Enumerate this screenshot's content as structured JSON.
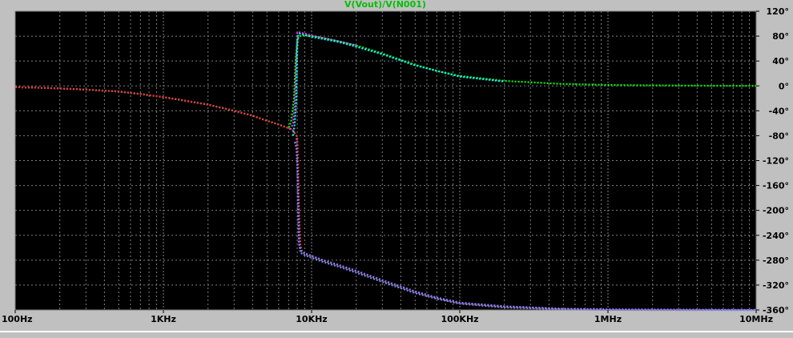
{
  "chart_data": {
    "type": "line",
    "title": "V(Vout)/V(N001)",
    "xscale": "log",
    "xlim": [
      100,
      10000000
    ],
    "ylim": [
      -360,
      120
    ],
    "grid": true,
    "xticks": [
      "100Hz",
      "1KHz",
      "10KHz",
      "100KHz",
      "1MHz",
      "10MHz"
    ],
    "xtick_values": [
      100,
      1000,
      10000,
      100000,
      1000000,
      10000000
    ],
    "yticks": [
      "120°",
      "80°",
      "40°",
      "0°",
      "-40°",
      "-80°",
      "-120°",
      "-160°",
      "-200°",
      "-240°",
      "-280°",
      "-320°",
      "-360°"
    ],
    "ytick_values": [
      120,
      80,
      40,
      0,
      -40,
      -80,
      -120,
      -160,
      -200,
      -240,
      -280,
      -320,
      -360
    ],
    "colors": {
      "background": "#000000",
      "grid": "#808080",
      "frame": "#c0c0c0",
      "axis_text": "#000000",
      "title": "#00c000"
    },
    "series": [
      {
        "color": "#00ff00",
        "x": [
          100,
          150,
          200,
          300,
          500,
          700,
          1000,
          1500,
          2000,
          3000,
          4000,
          5000,
          6000,
          7000,
          7300,
          7600,
          7800,
          8000,
          8200,
          9000,
          10000,
          12000,
          15000,
          20000,
          30000,
          50000,
          70000,
          100000,
          200000,
          500000,
          1000000,
          2000000,
          5000000,
          10000000
        ],
        "y": [
          -2,
          -3,
          -4,
          -6,
          -9,
          -13,
          -18,
          -25,
          -30,
          -40,
          -48,
          -56,
          -62,
          -68,
          -55,
          -20,
          40,
          72,
          80,
          81,
          80,
          77,
          72,
          65,
          52,
          34,
          24,
          16,
          8,
          3,
          1.5,
          0.8,
          0.3,
          0.1
        ]
      },
      {
        "color": "#4fa0ff",
        "x": [
          100,
          150,
          200,
          300,
          500,
          700,
          1000,
          1500,
          2000,
          3000,
          4000,
          5000,
          6000,
          7000,
          7500,
          7900,
          8000,
          8100,
          8200,
          8400,
          9000,
          10000,
          12000,
          15000,
          20000,
          30000,
          50000,
          70000,
          100000,
          200000,
          500000,
          1000000,
          2000000,
          5000000,
          10000000
        ],
        "y": [
          -2,
          -3,
          -4,
          -6,
          -9,
          -13,
          -18,
          -25,
          -30,
          -40,
          -48,
          -56,
          -62,
          -68,
          -72,
          -80,
          -120,
          -200,
          -250,
          -268,
          -272,
          -276,
          -283,
          -290,
          -300,
          -315,
          -333,
          -342,
          -350,
          -356,
          -359,
          -360,
          -360,
          -360,
          -360
        ]
      },
      {
        "color": "#ff3030",
        "x": [
          100,
          150,
          200,
          300,
          500,
          700,
          1000,
          1500,
          2000,
          3000,
          4000,
          5000,
          6000,
          7000,
          7500,
          8000,
          8100,
          8200,
          8400,
          8600,
          9000,
          10000,
          12000,
          15000,
          20000,
          30000,
          50000,
          70000,
          100000,
          200000,
          500000,
          1000000,
          2000000,
          5000000,
          10000000
        ],
        "y": [
          -2,
          -3,
          -4,
          -6,
          -9,
          -13,
          -18,
          -25,
          -30,
          -40,
          -48,
          -56,
          -62,
          -68,
          -72,
          -82,
          -120,
          -190,
          -255,
          -265,
          -270,
          -274,
          -281,
          -288,
          -298,
          -313,
          -331,
          -341,
          -349,
          -355,
          -358.5,
          -359.5,
          -360,
          -360,
          -360
        ]
      },
      {
        "color": "#ff30ff",
        "x": [
          7200,
          7500,
          7700,
          7900,
          8000,
          8300,
          9000,
          10000,
          12000,
          15000,
          20000
        ],
        "y": [
          -70,
          -60,
          -30,
          50,
          86,
          86,
          84,
          81,
          77,
          72,
          65
        ]
      },
      {
        "color": "#00ffff",
        "x": [
          7500,
          7700,
          7900,
          8000,
          8100,
          8300,
          9000,
          10000,
          15000,
          20000,
          30000,
          50000,
          100000,
          200000
        ],
        "y": [
          -80,
          -60,
          -20,
          60,
          82,
          84,
          82,
          79,
          71,
          63,
          51,
          33,
          15,
          7
        ]
      },
      {
        "color": "#8080ff",
        "x": [
          7700,
          7900,
          8050,
          8150,
          8250,
          8500,
          9000,
          10000,
          12000,
          15000,
          20000,
          30000,
          50000,
          70000,
          100000,
          200000,
          500000,
          1000000,
          10000000
        ],
        "y": [
          -90,
          -100,
          -140,
          -210,
          -255,
          -265,
          -269,
          -273,
          -280,
          -287,
          -297,
          -312,
          -330,
          -340,
          -348,
          -354,
          -358,
          -359,
          -360
        ]
      }
    ]
  }
}
